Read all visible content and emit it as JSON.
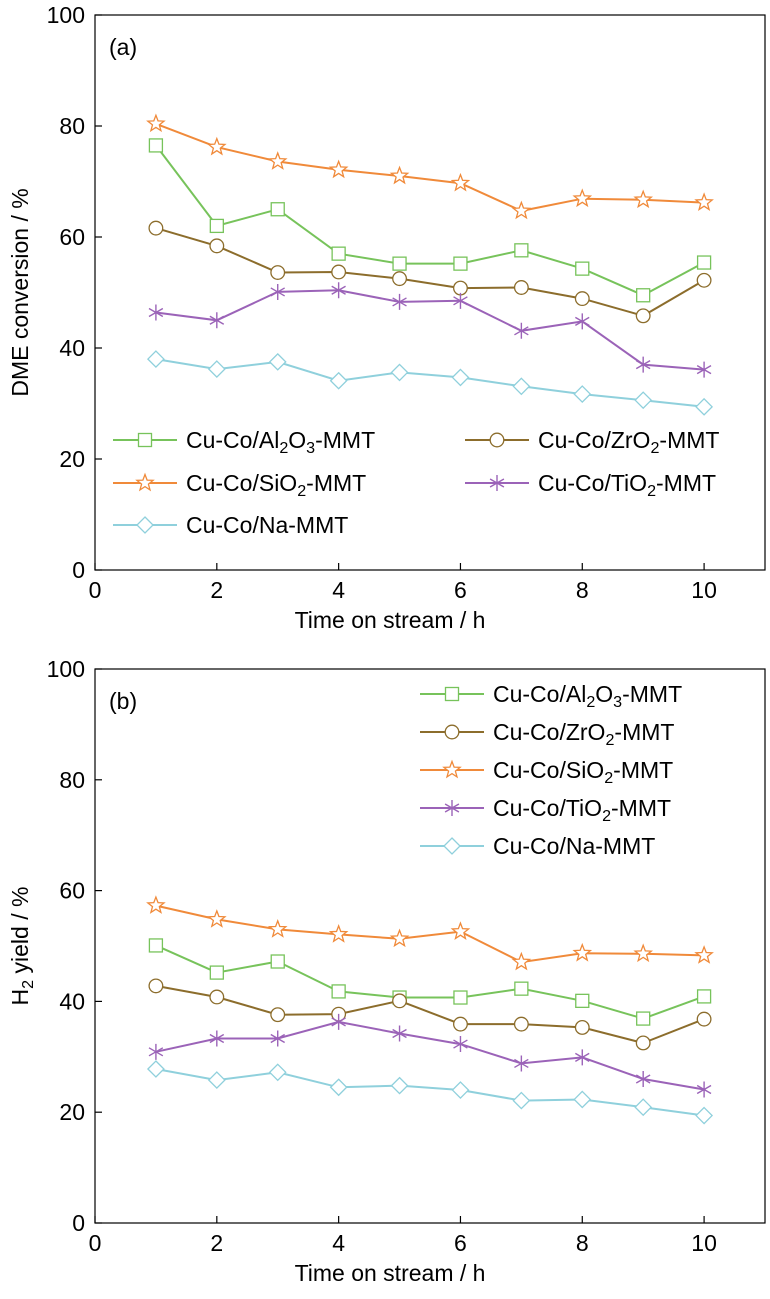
{
  "colors": {
    "al2o3": "#77c35b",
    "zro2": "#8c6d2c",
    "sio2": "#f08a3a",
    "tio2": "#9b63b8",
    "na": "#8fd0dc"
  },
  "chart_data": [
    {
      "type": "line",
      "panel_label": "(a)",
      "xlabel": "Time on stream / h",
      "ylabel": "DME conversion / %",
      "xlim": [
        0,
        11
      ],
      "ylim": [
        0,
        100
      ],
      "xticks": [
        0,
        2,
        4,
        6,
        8,
        10
      ],
      "yticks": [
        0,
        20,
        40,
        60,
        80,
        100
      ],
      "x": [
        1,
        2,
        3,
        4,
        5,
        6,
        7,
        8,
        9,
        10
      ],
      "grid": false,
      "legend": "bottom-left, two columns",
      "series": [
        {
          "key": "al2o3",
          "name": "Cu-Co/Al2O3-MMT",
          "name_parts": [
            "Cu-Co/Al",
            "2",
            "O",
            "3",
            "-MMT"
          ],
          "marker": "square",
          "values": [
            76.5,
            62,
            65,
            57,
            55.2,
            55.2,
            57.6,
            54.3,
            49.5,
            55.4
          ]
        },
        {
          "key": "zro2",
          "name": "Cu-Co/ZrO2-MMT",
          "name_parts": [
            "Cu-Co/ZrO",
            "2",
            "-MMT"
          ],
          "marker": "circle",
          "values": [
            61.6,
            58.4,
            53.6,
            53.7,
            52.5,
            50.8,
            50.9,
            48.9,
            45.8,
            52.2
          ]
        },
        {
          "key": "sio2",
          "name": "Cu-Co/SiO2-MMT",
          "name_parts": [
            "Cu-Co/SiO",
            "2",
            "-MMT"
          ],
          "marker": "star",
          "values": [
            80.4,
            76.2,
            73.6,
            72.1,
            71,
            69.7,
            64.7,
            66.9,
            66.7,
            66.2
          ]
        },
        {
          "key": "tio2",
          "name": "Cu-Co/TiO2-MMT",
          "name_parts": [
            "Cu-Co/TiO",
            "2",
            "-MMT"
          ],
          "marker": "asterisk",
          "values": [
            46.4,
            45,
            50.1,
            50.4,
            48.3,
            48.5,
            43.1,
            44.8,
            37,
            36.1
          ]
        },
        {
          "key": "na",
          "name": "Cu-Co/Na-MMT",
          "name_parts": [
            "Cu-Co/Na-MMT"
          ],
          "marker": "diamond",
          "values": [
            38,
            36.2,
            37.5,
            34.1,
            35.6,
            34.7,
            33.1,
            31.7,
            30.6,
            29.4
          ]
        }
      ]
    },
    {
      "type": "line",
      "panel_label": "(b)",
      "xlabel": "Time on stream / h",
      "ylabel": "H2 yield / %",
      "ylabel_parts": [
        "H",
        "2",
        " yield / %"
      ],
      "xlim": [
        0,
        11
      ],
      "ylim": [
        0,
        100
      ],
      "xticks": [
        0,
        2,
        4,
        6,
        8,
        10
      ],
      "yticks": [
        0,
        20,
        40,
        60,
        80,
        100
      ],
      "x": [
        1,
        2,
        3,
        4,
        5,
        6,
        7,
        8,
        9,
        10
      ],
      "grid": false,
      "legend": "top-right, one column",
      "series": [
        {
          "key": "al2o3",
          "name": "Cu-Co/Al2O3-MMT",
          "name_parts": [
            "Cu-Co/Al",
            "2",
            "O",
            "3",
            "-MMT"
          ],
          "marker": "square",
          "values": [
            50.1,
            45.2,
            47.2,
            41.8,
            40.7,
            40.7,
            42.3,
            40.1,
            36.9,
            40.9
          ]
        },
        {
          "key": "zro2",
          "name": "Cu-Co/ZrO2-MMT",
          "name_parts": [
            "Cu-Co/ZrO",
            "2",
            "-MMT"
          ],
          "marker": "circle",
          "values": [
            42.8,
            40.8,
            37.6,
            37.7,
            40.1,
            35.9,
            35.9,
            35.3,
            32.5,
            36.8
          ]
        },
        {
          "key": "sio2",
          "name": "Cu-Co/SiO2-MMT",
          "name_parts": [
            "Cu-Co/SiO",
            "2",
            "-MMT"
          ],
          "marker": "star",
          "values": [
            57.3,
            54.8,
            53,
            52.1,
            51.3,
            52.6,
            47.1,
            48.7,
            48.6,
            48.3
          ]
        },
        {
          "key": "tio2",
          "name": "Cu-Co/TiO2-MMT",
          "name_parts": [
            "Cu-Co/TiO",
            "2",
            "-MMT"
          ],
          "marker": "asterisk",
          "values": [
            30.9,
            33.3,
            33.3,
            36.3,
            34.2,
            32.3,
            28.8,
            29.9,
            26,
            24.1
          ]
        },
        {
          "key": "na",
          "name": "Cu-Co/Na-MMT",
          "name_parts": [
            "Cu-Co/Na-MMT"
          ],
          "marker": "diamond",
          "values": [
            27.8,
            25.8,
            27.2,
            24.5,
            24.8,
            24,
            22.1,
            22.3,
            20.9,
            19.4
          ]
        }
      ]
    }
  ]
}
